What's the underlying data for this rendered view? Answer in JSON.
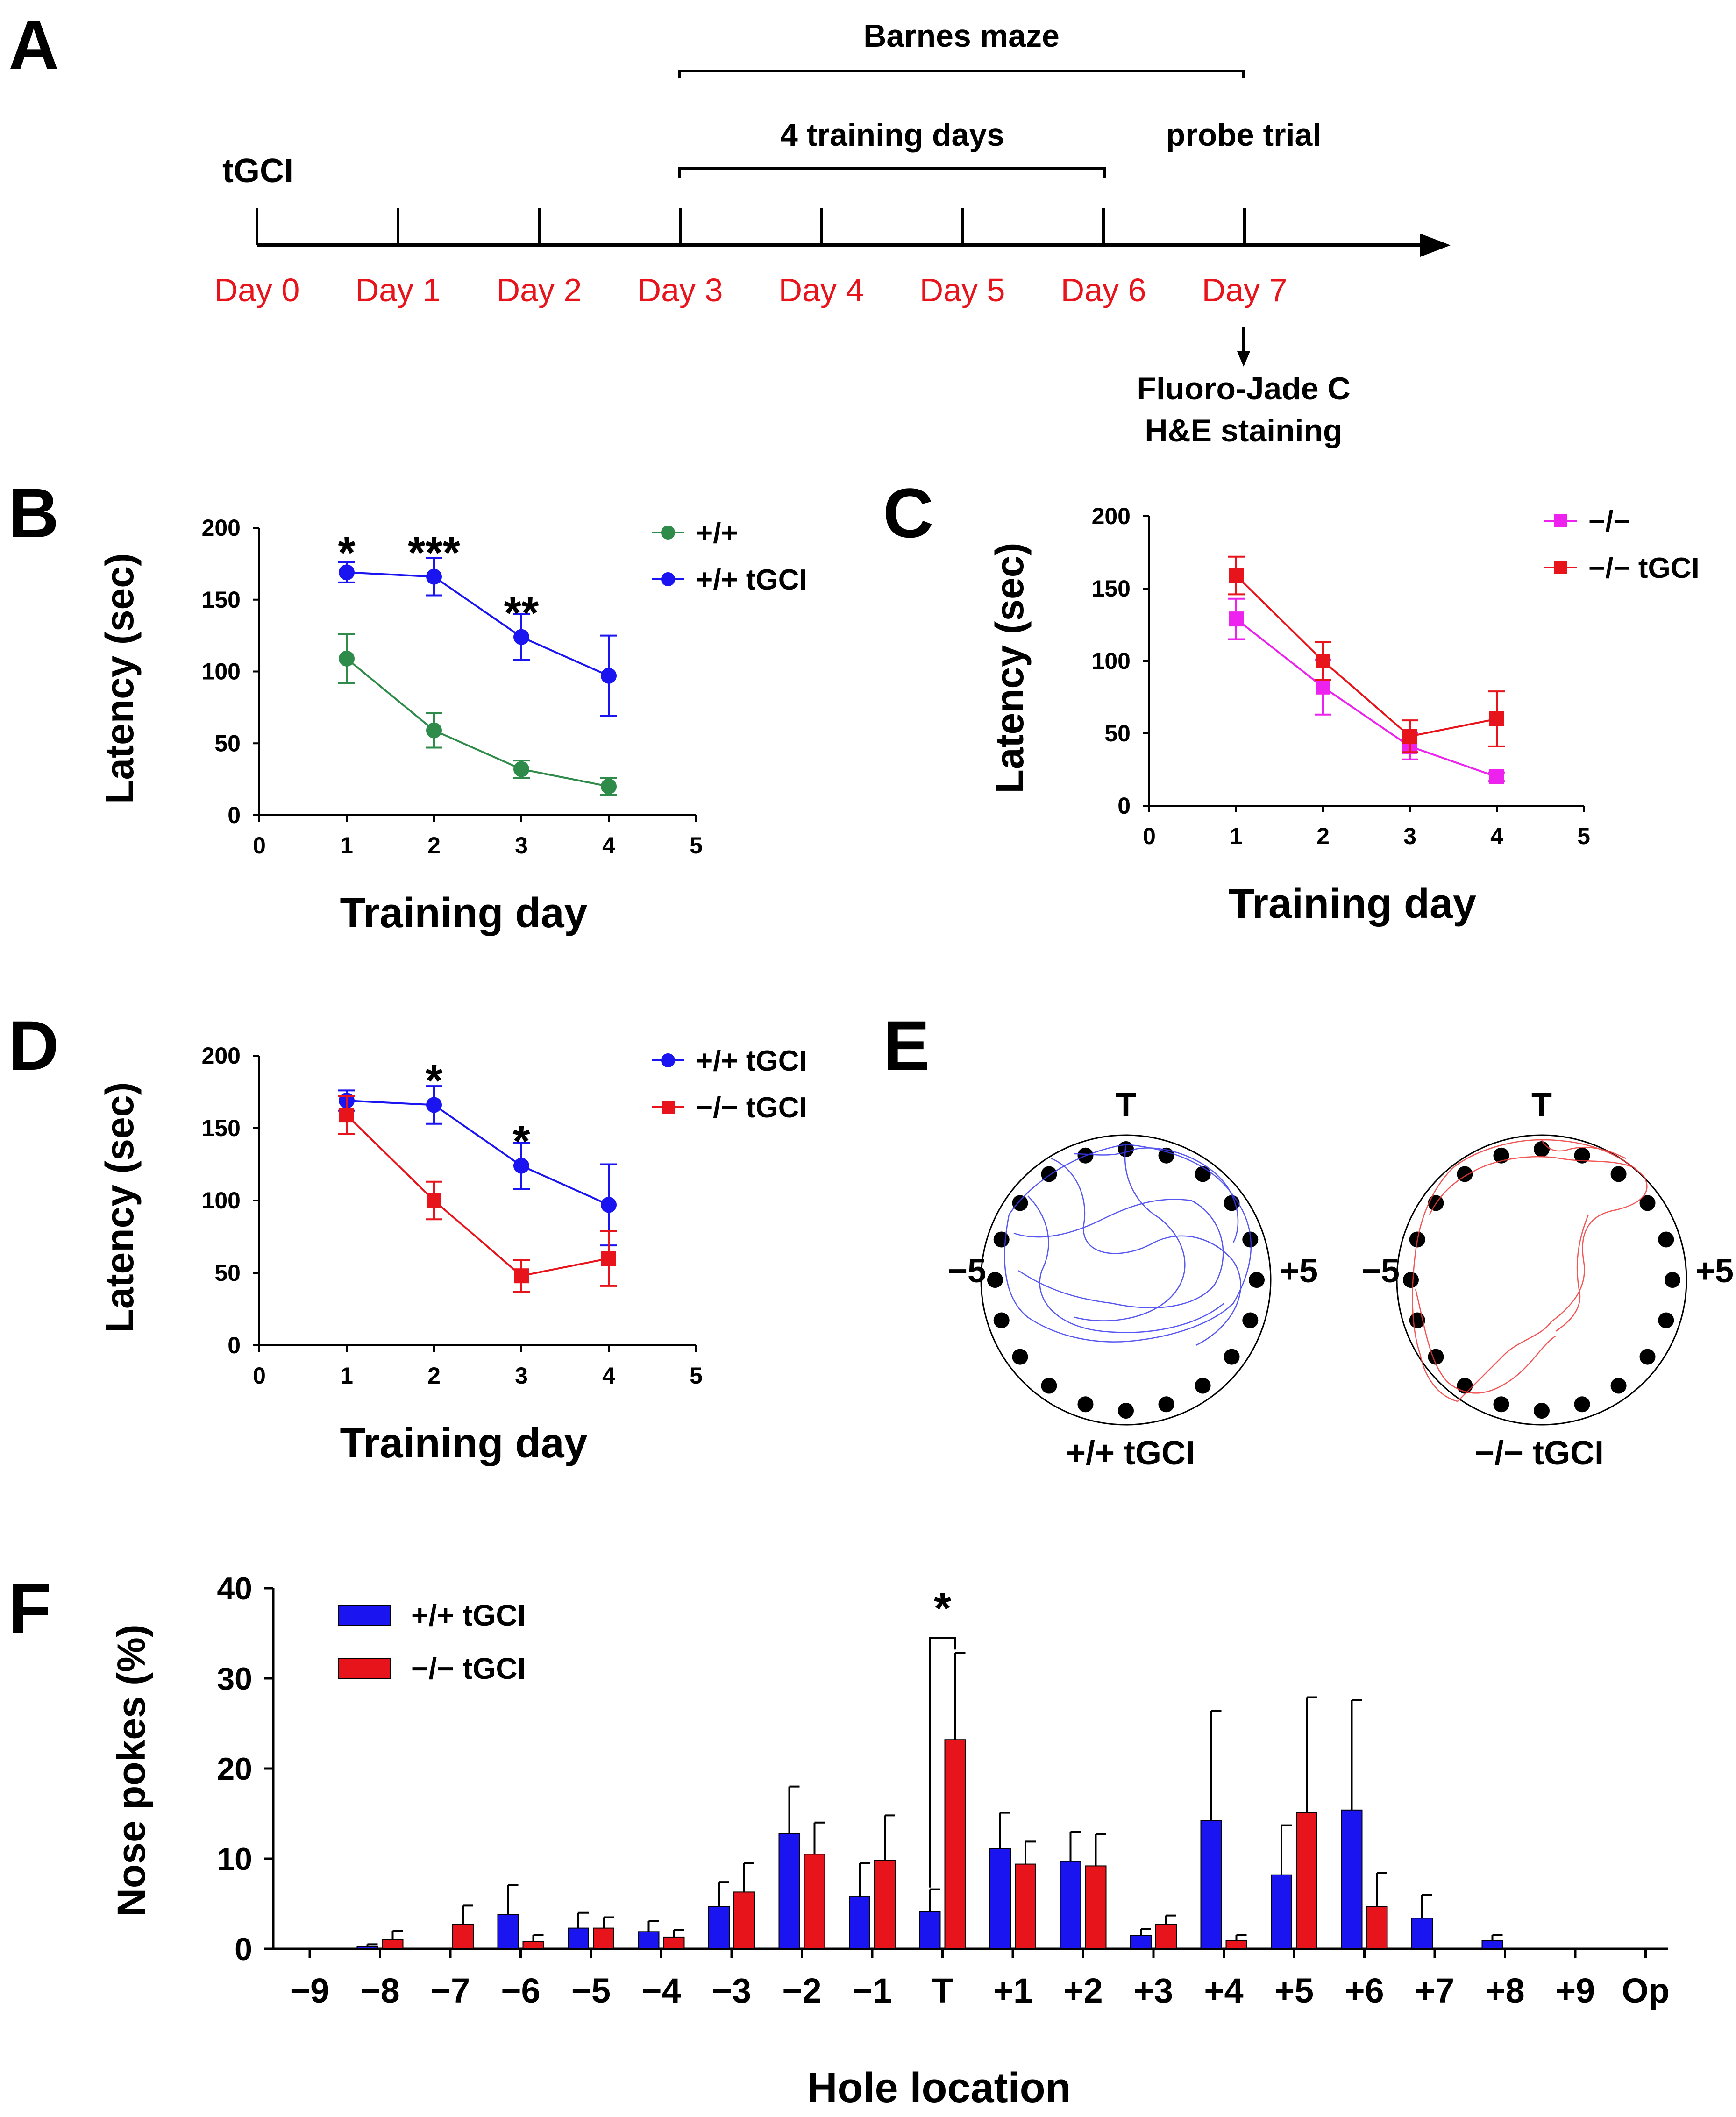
{
  "colors": {
    "red": "#e8141b",
    "blue": "#1a14f0",
    "green": "#2e8b4a",
    "magenta": "#ee22ee",
    "black": "#000000"
  },
  "panel_letters": {
    "a": "A",
    "b": "B",
    "c": "C",
    "d": "D",
    "e": "E",
    "f": "F"
  },
  "timeline": {
    "start_label": "tGCI",
    "days": [
      "Day 0",
      "Day 1",
      "Day 2",
      "Day 3",
      "Day 4",
      "Day 5",
      "Day 6",
      "Day 7"
    ],
    "bracket_top": "Barnes maze",
    "bracket_training": "4 training days",
    "probe_label": "probe trial",
    "staining_line1": "Fluoro-Jade C",
    "staining_line2": "H&E staining"
  },
  "maze": {
    "target_label": "T",
    "left_label": "−5",
    "right_label": "+5",
    "left_caption": "+/+ tGCI",
    "right_caption": "−/− tGCI"
  },
  "chart_data": [
    {
      "id": "B",
      "type": "line",
      "xlabel": "Training day",
      "ylabel": "Latency (sec)",
      "xlim": [
        0,
        5
      ],
      "ylim": [
        0,
        200
      ],
      "xticks": [
        "0",
        "1",
        "2",
        "3",
        "4",
        "5"
      ],
      "yticks": [
        "0",
        "50",
        "100",
        "150",
        "200"
      ],
      "x": [
        1,
        2,
        3,
        4
      ],
      "series": [
        {
          "name": "+/+",
          "marker": "circle",
          "color": "#2e8b4a",
          "values": [
            109,
            59,
            32,
            20
          ],
          "errors": [
            17,
            12,
            6,
            6
          ]
        },
        {
          "name": "+/+ tGCI",
          "marker": "circle",
          "color": "#1a14f0",
          "values": [
            169,
            166,
            124,
            97
          ],
          "errors": [
            7,
            13,
            16,
            28
          ]
        }
      ],
      "annotations": [
        {
          "x": 1,
          "y": 190,
          "text": "*"
        },
        {
          "x": 2,
          "y": 190,
          "text": "***"
        },
        {
          "x": 3,
          "y": 148,
          "text": "**"
        }
      ]
    },
    {
      "id": "C",
      "type": "line",
      "xlabel": "Training day",
      "ylabel": "Latency (sec)",
      "xlim": [
        0,
        5
      ],
      "ylim": [
        0,
        200
      ],
      "xticks": [
        "0",
        "1",
        "2",
        "3",
        "4",
        "5"
      ],
      "yticks": [
        "0",
        "50",
        "100",
        "150",
        "200"
      ],
      "x": [
        1,
        2,
        3,
        4
      ],
      "series": [
        {
          "name": "−/−",
          "marker": "square",
          "color": "#ee22ee",
          "values": [
            129,
            82,
            41,
            20
          ],
          "errors": [
            14,
            19,
            9,
            3
          ]
        },
        {
          "name": "−/− tGCI",
          "marker": "square",
          "color": "#e8141b",
          "values": [
            159,
            100,
            48,
            60
          ],
          "errors": [
            13,
            13,
            11,
            19
          ]
        }
      ],
      "annotations": []
    },
    {
      "id": "D",
      "type": "line",
      "xlabel": "Training day",
      "ylabel": "Latency (sec)",
      "xlim": [
        0,
        5
      ],
      "ylim": [
        0,
        200
      ],
      "xticks": [
        "0",
        "1",
        "2",
        "3",
        "4",
        "5"
      ],
      "yticks": [
        "0",
        "50",
        "100",
        "150",
        "200"
      ],
      "x": [
        1,
        2,
        3,
        4
      ],
      "series": [
        {
          "name": "+/+ tGCI",
          "marker": "circle",
          "color": "#1a14f0",
          "values": [
            169,
            166,
            124,
            97
          ],
          "errors": [
            7,
            13,
            16,
            28
          ]
        },
        {
          "name": "−/− tGCI",
          "marker": "square",
          "color": "#e8141b",
          "values": [
            159,
            100,
            48,
            60
          ],
          "errors": [
            13,
            13,
            11,
            19
          ]
        }
      ],
      "annotations": [
        {
          "x": 2,
          "y": 190,
          "text": "*"
        },
        {
          "x": 3,
          "y": 148,
          "text": "*"
        }
      ]
    },
    {
      "id": "F",
      "type": "bar",
      "xlabel": "Hole location",
      "ylabel": "Nose pokes (%)",
      "ylim": [
        0,
        40
      ],
      "yticks": [
        "0",
        "10",
        "20",
        "30",
        "40"
      ],
      "categories": [
        "−9",
        "−8",
        "−7",
        "−6",
        "−5",
        "−4",
        "−3",
        "−2",
        "−1",
        "T",
        "+1",
        "+2",
        "+3",
        "+4",
        "+5",
        "+6",
        "+7",
        "+8",
        "+9",
        "Op"
      ],
      "series": [
        {
          "name": "+/+ tGCI",
          "color": "#1a14f0",
          "values": [
            0,
            0.3,
            0,
            3.8,
            2.3,
            1.9,
            4.7,
            12.8,
            5.8,
            4.1,
            11.1,
            9.7,
            1.5,
            14.2,
            8.2,
            15.4,
            3.4,
            0.9,
            0,
            0
          ],
          "errors": [
            0,
            0.2,
            0,
            3.3,
            1.7,
            1.2,
            2.7,
            5.2,
            3.7,
            2.5,
            4.0,
            3.3,
            0.7,
            12.2,
            5.5,
            12.2,
            2.6,
            0.6,
            0,
            0
          ]
        },
        {
          "name": "−/− tGCI",
          "color": "#e8141b",
          "values": [
            0,
            1.0,
            2.7,
            0.8,
            2.3,
            1.3,
            6.3,
            10.5,
            9.8,
            23.2,
            9.4,
            9.2,
            2.7,
            0.9,
            15.1,
            4.7,
            0,
            0,
            0,
            0
          ],
          "errors": [
            0,
            1.0,
            2.1,
            0.7,
            1.2,
            0.8,
            3.2,
            3.5,
            5.0,
            9.6,
            2.5,
            3.5,
            1.0,
            0.6,
            12.8,
            3.7,
            0,
            0,
            0,
            0
          ]
        }
      ],
      "annotations": [
        {
          "between": [
            "T",
            "T"
          ],
          "text": "*"
        }
      ]
    }
  ]
}
